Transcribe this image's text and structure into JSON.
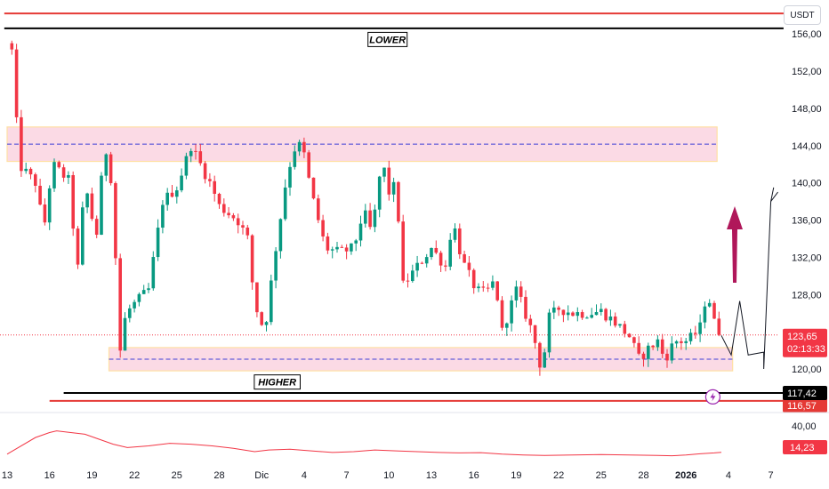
{
  "currency_label": "USDT",
  "colors": {
    "up": "#089981",
    "down": "#f23645",
    "zone_fill": "#f8bbd0",
    "zone_border": "#ffe0a3",
    "zone_mid": "#3f3fd6",
    "red_level": "#e53935",
    "black_level": "#000000",
    "arrow": "#b0175a",
    "rsi_line": "#f23645",
    "current_price_tag": "#f23645",
    "level_tag_black": "#000000",
    "level_tag_red": "#e53935",
    "oscillator_tag": "#f23645"
  },
  "chart_data": {
    "type": "candlestick",
    "y_axis_ticks": [
      "152,00",
      "148,00",
      "144,00",
      "140,00",
      "136,00",
      "132,00",
      "128,00",
      "120,00"
    ],
    "x_axis_ticks": [
      {
        "label": "13",
        "bold": false
      },
      {
        "label": "16",
        "bold": false
      },
      {
        "label": "19",
        "bold": false
      },
      {
        "label": "22",
        "bold": false
      },
      {
        "label": "25",
        "bold": false
      },
      {
        "label": "28",
        "bold": false
      },
      {
        "label": "Dic",
        "bold": false
      },
      {
        "label": "4",
        "bold": false
      },
      {
        "label": "7",
        "bold": false
      },
      {
        "label": "10",
        "bold": false
      },
      {
        "label": "13",
        "bold": false
      },
      {
        "label": "16",
        "bold": false
      },
      {
        "label": "19",
        "bold": false
      },
      {
        "label": "22",
        "bold": false
      },
      {
        "label": "25",
        "bold": false
      },
      {
        "label": "28",
        "bold": false
      },
      {
        "label": "2026",
        "bold": true
      },
      {
        "label": "4",
        "bold": false
      },
      {
        "label": "7",
        "bold": false
      }
    ],
    "y_range": [
      115.8,
      157.2
    ],
    "days_range": [
      -0.2,
      54.9
    ],
    "anchors": [
      [
        0.0,
        155.0
      ],
      [
        0.15,
        156.5
      ],
      [
        0.5,
        152.0
      ],
      [
        0.8,
        142.0
      ],
      [
        2.0,
        140.0
      ],
      [
        2.6,
        135.0
      ],
      [
        3.2,
        142.0
      ],
      [
        4.5,
        140.0
      ],
      [
        4.9,
        129.0
      ],
      [
        5.5,
        140.0
      ],
      [
        6.3,
        134.0
      ],
      [
        6.9,
        144.2
      ],
      [
        7.4,
        140.0
      ],
      [
        8.0,
        122.0
      ],
      [
        8.4,
        126.0
      ],
      [
        9.0,
        127.0
      ],
      [
        10.0,
        128.5
      ],
      [
        11.0,
        138.0
      ],
      [
        12.0,
        139.5
      ],
      [
        13.0,
        144.0
      ],
      [
        14.0,
        141.0
      ],
      [
        14.5,
        139.5
      ],
      [
        15.0,
        137.5
      ],
      [
        16.3,
        136.0
      ],
      [
        17.0,
        134.0
      ],
      [
        17.5,
        127.0
      ],
      [
        18.2,
        124.0
      ],
      [
        19.0,
        133.0
      ],
      [
        19.8,
        141.0
      ],
      [
        20.5,
        144.5
      ],
      [
        21.0,
        143.0
      ],
      [
        21.5,
        139.0
      ],
      [
        22.5,
        133.0
      ],
      [
        23.5,
        132.5
      ],
      [
        24.5,
        133.0
      ],
      [
        25.2,
        137.0
      ],
      [
        25.8,
        134.5
      ],
      [
        26.5,
        142.5
      ],
      [
        27.0,
        139.0
      ],
      [
        27.5,
        139.8
      ],
      [
        28.0,
        129.0
      ],
      [
        29.0,
        131.0
      ],
      [
        30.0,
        133.0
      ],
      [
        31.0,
        131.0
      ],
      [
        31.5,
        136.0
      ],
      [
        32.2,
        131.5
      ],
      [
        33.0,
        129.0
      ],
      [
        33.5,
        128.0
      ],
      [
        34.0,
        128.5
      ],
      [
        34.5,
        129.5
      ],
      [
        35.0,
        124.0
      ],
      [
        36.0,
        128.5
      ],
      [
        37.0,
        124.5
      ],
      [
        37.5,
        122.0
      ],
      [
        37.8,
        119.5
      ],
      [
        38.3,
        125.5
      ],
      [
        39.0,
        126.5
      ],
      [
        40.0,
        126.0
      ],
      [
        41.0,
        126.0
      ],
      [
        42.0,
        126.2
      ],
      [
        43.0,
        125.0
      ],
      [
        44.0,
        123.5
      ],
      [
        44.7,
        121.0
      ],
      [
        45.2,
        122.0
      ],
      [
        46.0,
        123.0
      ],
      [
        46.5,
        121.0
      ],
      [
        47.2,
        123.0
      ],
      [
        48.0,
        123.0
      ],
      [
        48.5,
        123.5
      ],
      [
        49.0,
        124.5
      ],
      [
        49.5,
        128.5
      ],
      [
        50.0,
        125.0
      ],
      [
        50.5,
        123.65
      ]
    ],
    "resistance_zone": {
      "from_day": 0.0,
      "to_day": 50.2,
      "low": 142.3,
      "high": 146.0,
      "mid": 144.15
    },
    "support_zone": {
      "from_day": 7.2,
      "to_day": 51.3,
      "low": 119.8,
      "high": 122.3,
      "mid": 121.05
    },
    "levels": [
      {
        "name": "upper-red",
        "value": 158.2,
        "from_day": -0.2,
        "to_day": 54.9
      },
      {
        "name": "upper-black",
        "value": 156.6,
        "from_day": -0.2,
        "to_day": 54.9
      },
      {
        "name": "lower-black",
        "value": 117.42,
        "from_day": 4.0,
        "to_day": 54.9
      },
      {
        "name": "lower-red",
        "value": 116.57,
        "from_day": 3.0,
        "to_day": 54.9
      }
    ],
    "projection": [
      [
        50.5,
        123.6
      ],
      [
        51.2,
        121.5
      ],
      [
        51.8,
        127.3
      ],
      [
        52.4,
        121.5
      ],
      [
        53.5,
        121.8
      ],
      [
        53.5,
        120.0
      ],
      [
        54.0,
        138.0
      ],
      [
        54.5,
        139.0
      ],
      [
        54.0,
        138.0
      ],
      [
        54.2,
        139.5
      ]
    ],
    "oscillator": {
      "scale_label": "40,00",
      "current_label": "14,23",
      "range": [
        0,
        60
      ],
      "points": [
        [
          0.0,
          12
        ],
        [
          2.0,
          32
        ],
        [
          3.0,
          38
        ],
        [
          3.5,
          40
        ],
        [
          4.5,
          38
        ],
        [
          5.5,
          36
        ],
        [
          6.5,
          30
        ],
        [
          7.5,
          24
        ],
        [
          8.5,
          20
        ],
        [
          10.0,
          22
        ],
        [
          11.5,
          25
        ],
        [
          13.0,
          24
        ],
        [
          14.5,
          22
        ],
        [
          16.0,
          19
        ],
        [
          17.5,
          15
        ],
        [
          18.5,
          17
        ],
        [
          20.0,
          18
        ],
        [
          21.5,
          16
        ],
        [
          23.0,
          14
        ],
        [
          24.5,
          15
        ],
        [
          26.0,
          17
        ],
        [
          27.5,
          16
        ],
        [
          29.0,
          15
        ],
        [
          30.5,
          14
        ],
        [
          32.0,
          13.5
        ],
        [
          33.5,
          13.8
        ],
        [
          35.0,
          12
        ],
        [
          36.5,
          11
        ],
        [
          38.0,
          10.5
        ],
        [
          40.0,
          11
        ],
        [
          42.0,
          11.5
        ],
        [
          44.0,
          11
        ],
        [
          46.0,
          10.5
        ],
        [
          47.0,
          10
        ],
        [
          48.0,
          11
        ],
        [
          49.0,
          12.5
        ],
        [
          50.0,
          13.5
        ],
        [
          50.5,
          14.23
        ]
      ]
    },
    "annotations": [
      {
        "text": "LOWER",
        "day": 26.9,
        "price": 155.4
      },
      {
        "text": "HIGHER",
        "day": 19.1,
        "price": 118.6
      }
    ],
    "price_tags": [
      {
        "value": "123,65",
        "subtext": "02:13:33",
        "kind": "current"
      },
      {
        "value": "117,42",
        "subtext": "",
        "kind": "level-black"
      },
      {
        "value": "116,57",
        "subtext": "",
        "kind": "level-red"
      }
    ]
  }
}
